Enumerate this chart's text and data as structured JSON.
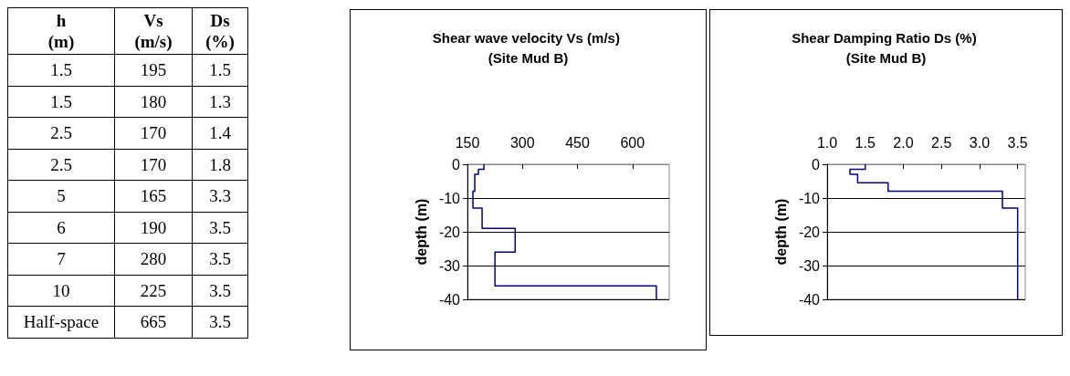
{
  "chart_data": [
    {
      "type": "other",
      "annotations": [
        "h\n(m)",
        "Vs\n(m/s)",
        "Ds\n(%)",
        "1.5",
        "195",
        "1.5",
        "1.5",
        "180",
        "1.3",
        "2.5",
        "170",
        "1.4",
        "2.5",
        "170",
        "1.8",
        "5",
        "165",
        "3.3",
        "6",
        "190",
        "3.5",
        "7",
        "280",
        "3.5",
        "10",
        "225",
        "3.5",
        "Half-space",
        "665",
        "3.5"
      ]
    },
    {
      "type": "line",
      "title": "Shear wave velocity Vs (m/s) (Site Mud B)",
      "ylabel": "depth (m)",
      "xlim": [
        150,
        700
      ],
      "xticks": [
        150,
        300,
        450,
        600
      ],
      "ylim": [
        -40,
        0
      ],
      "yticks": [
        0,
        -10,
        -20,
        -30,
        -40
      ],
      "grid": "y",
      "marker": "none",
      "series": [
        {
          "color": "#000080",
          "x": [
            195,
            195,
            180,
            180,
            170,
            170,
            165,
            165,
            190,
            190,
            280,
            280,
            225,
            225,
            665,
            665
          ],
          "values": [
            0,
            -1.5,
            -1.5,
            -3,
            -3,
            -8,
            -8,
            -13,
            -13,
            -19,
            -19,
            -26,
            -26,
            -36,
            -36,
            -40
          ]
        }
      ]
    },
    {
      "type": "line",
      "title": "Shear Damping Ratio Ds (%) (Site Mud B)",
      "ylabel": "depth (m)",
      "xlim": [
        1,
        3.6
      ],
      "xticks": [
        {
          "value": 1,
          "label": "1.0"
        },
        1.5,
        {
          "value": 2,
          "label": "2.0"
        },
        2.5,
        {
          "value": 3,
          "label": "3.0"
        },
        3.5
      ],
      "ylim": [
        -40,
        0
      ],
      "yticks": [
        0,
        -10,
        -20,
        -30,
        -40
      ],
      "grid": "y",
      "marker": "none",
      "series": [
        {
          "color": "#000080",
          "x": [
            1.5,
            1.5,
            1.3,
            1.3,
            1.4,
            1.4,
            1.8,
            1.8,
            3.3,
            3.3,
            3.5,
            3.5
          ],
          "values": [
            0,
            -1.5,
            -1.5,
            -3,
            -3,
            -5.5,
            -5.5,
            -8,
            -8,
            -13,
            -13,
            -40
          ]
        }
      ]
    }
  ]
}
